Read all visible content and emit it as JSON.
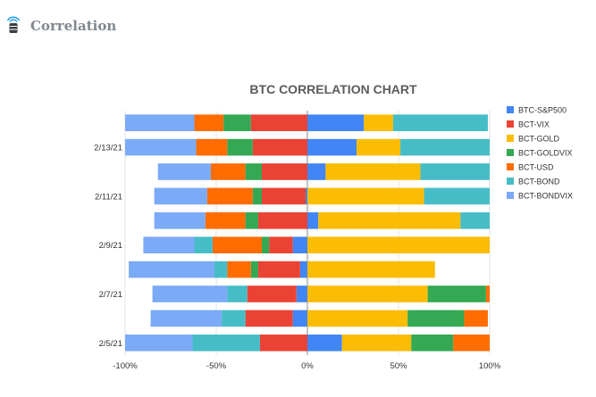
{
  "header": {
    "title": "Correlation",
    "logo_icon": "database-signal-icon",
    "accent_color": "#1a9be6"
  },
  "chart_data": {
    "type": "bar",
    "orientation": "horizontal",
    "stacked": "diverging",
    "title": "BTC CORRELATION CHART",
    "xlabel": "",
    "ylabel": "",
    "xlim": [
      -100,
      100
    ],
    "x_ticks": [
      "-100%",
      "-50%",
      "0%",
      "50%",
      "100%"
    ],
    "grid": true,
    "legend_position": "right",
    "categories": [
      "",
      "2/13/21",
      "",
      "2/11/21",
      "",
      "2/9/21",
      "",
      "2/7/21",
      "",
      "2/5/21"
    ],
    "series": [
      {
        "name": "BTC-S&P500",
        "color": "#4285f4",
        "values": [
          31,
          27,
          10,
          -1,
          6,
          -8,
          -4,
          -6,
          -8,
          19
        ]
      },
      {
        "name": "BCT-VIX",
        "color": "#ea4335",
        "values": [
          -31,
          -30,
          -25,
          -24,
          -27,
          -13,
          -23,
          -27,
          -26,
          -26
        ]
      },
      {
        "name": "BCT-GOLD",
        "color": "#fbbc04",
        "values": [
          16,
          24,
          52,
          64,
          78,
          100,
          70,
          66,
          55,
          38
        ]
      },
      {
        "name": "BCT-GOLDVIX",
        "color": "#34a853",
        "values": [
          -15,
          -14,
          -9,
          -5,
          -7,
          -4,
          -4,
          32,
          31,
          23
        ]
      },
      {
        "name": "BCT-USD",
        "color": "#ff6d01",
        "values": [
          -16,
          -17,
          -19,
          -25,
          -22,
          -27,
          -13,
          2,
          13,
          20
        ]
      },
      {
        "name": "BCT-BOND",
        "color": "#46bdc6",
        "values": [
          52,
          50,
          38,
          36,
          16,
          -10,
          -7,
          -11,
          -13,
          -37
        ]
      },
      {
        "name": "BCT-BONDVIX",
        "color": "#7baaf7",
        "values": [
          -38,
          -39,
          -29,
          -29,
          -28,
          -28,
          -47,
          -41,
          -39,
          -37
        ]
      }
    ]
  }
}
